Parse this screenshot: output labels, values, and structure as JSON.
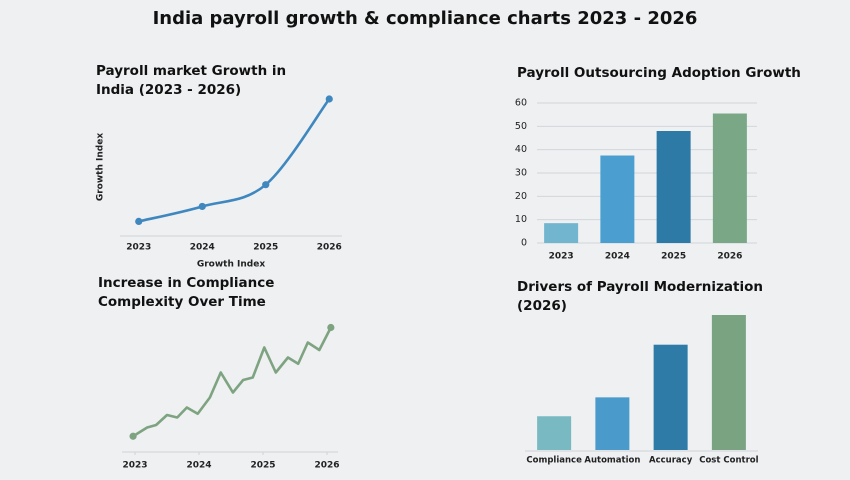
{
  "title": "India payroll growth & compliance charts 2023 - 2026",
  "chart_data": [
    {
      "type": "line",
      "title": "Payroll market Growth in India (2023 - 2026)",
      "xlabel": "Growth Index",
      "ylabel": "Growth Index",
      "categories": [
        "2023",
        "2024",
        "2025",
        "2026"
      ],
      "values": [
        10,
        21,
        37,
        100
      ],
      "color": "#3f87bf",
      "ylim": [
        0,
        100
      ],
      "smooth": true,
      "markers": true
    },
    {
      "type": "bar",
      "title": "Payroll Outsourcing Adoption Growth",
      "categories": [
        "2023",
        "2024",
        "2025",
        "2026"
      ],
      "values": [
        8.5,
        37.5,
        48,
        55.5
      ],
      "colors": [
        "#72b5cf",
        "#4a9fd0",
        "#2e7aa6",
        "#7aa886"
      ],
      "ylim": [
        0,
        60
      ],
      "yticks": [
        0,
        10,
        20,
        30,
        40,
        50,
        60
      ],
      "grid": true
    },
    {
      "type": "line",
      "title": "Increase in Compliance Complexity Over Time",
      "x": [
        2022.97,
        2023.19,
        2023.33,
        2023.5,
        2023.66,
        2023.81,
        2023.98,
        2024.17,
        2024.34,
        2024.53,
        2024.69,
        2024.84,
        2025.02,
        2025.2,
        2025.39,
        2025.55,
        2025.7,
        2025.88,
        2026.06
      ],
      "values": [
        11,
        18,
        20,
        28,
        26,
        34,
        29,
        42,
        62,
        46,
        56,
        58,
        82,
        62,
        74,
        69,
        86,
        80,
        98
      ],
      "color": "#7ea381",
      "xlim": [
        2022.9,
        2026.1
      ],
      "xticks": [
        2023,
        2024,
        2025,
        2026
      ],
      "ylim": [
        0,
        100
      ],
      "smooth": false
    },
    {
      "type": "bar",
      "title": "Drivers of Payroll Modernization (2026)",
      "categories": [
        "Compliance",
        "Automation",
        "Accuracy",
        "Cost Control"
      ],
      "values": [
        25,
        39,
        78,
        100
      ],
      "colors": [
        "#79b9c1",
        "#4a9acb",
        "#2d7ba6",
        "#7aa382"
      ],
      "ylim": [
        0,
        100
      ],
      "grid": false
    }
  ]
}
